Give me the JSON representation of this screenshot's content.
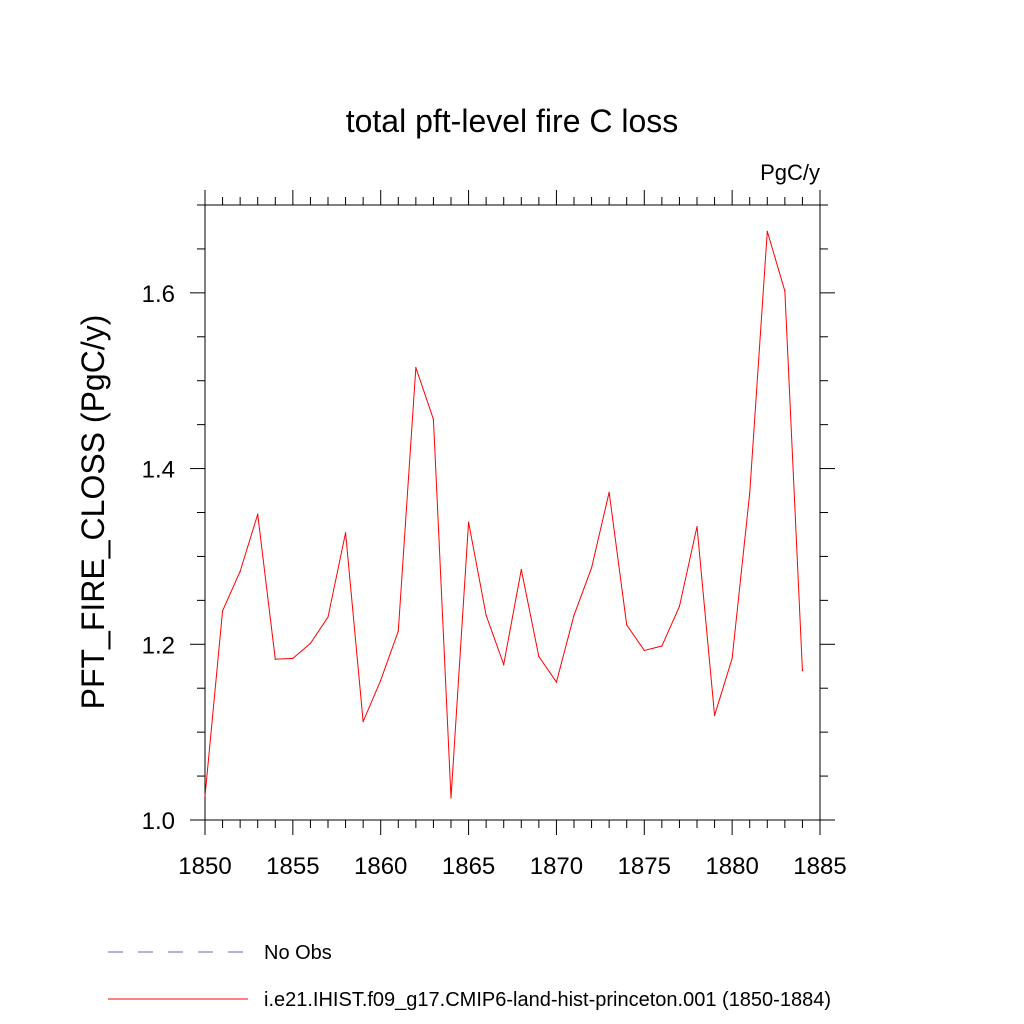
{
  "chart_data": {
    "type": "line",
    "title": "total pft-level fire C loss",
    "units": "PgC/y",
    "xlabel": "",
    "ylabel": "PFT_FIRE_CLOSS  (PgC/y)",
    "xlim": [
      1850,
      1885
    ],
    "ylim": [
      1.0,
      1.7
    ],
    "grid": false,
    "x_ticks": [
      1850,
      1855,
      1860,
      1865,
      1870,
      1875,
      1880,
      1885
    ],
    "x_tick_labels": [
      "1850",
      "1855",
      "1860",
      "1865",
      "1870",
      "1875",
      "1880",
      "1885"
    ],
    "y_ticks": [
      1.0,
      1.2,
      1.4,
      1.6
    ],
    "y_tick_labels": [
      "1.0",
      "1.2",
      "1.4",
      "1.6"
    ],
    "x_minor_step": 1,
    "y_minor_step": 0.05,
    "x": [
      1850,
      1851,
      1852,
      1853,
      1854,
      1855,
      1856,
      1857,
      1858,
      1859,
      1860,
      1861,
      1862,
      1863,
      1864,
      1865,
      1866,
      1867,
      1868,
      1869,
      1870,
      1871,
      1872,
      1873,
      1874,
      1875,
      1876,
      1877,
      1878,
      1879,
      1880,
      1881,
      1882,
      1883,
      1884
    ],
    "series": [
      {
        "name": "i.e21.IHIST.f09_g17.CMIP6-land-hist-princeton.001 (1850-1884)",
        "color": "#ff0000",
        "style": "solid",
        "values": [
          1.027,
          1.238,
          1.283,
          1.348,
          1.183,
          1.184,
          1.201,
          1.231,
          1.327,
          1.112,
          1.159,
          1.215,
          1.515,
          1.456,
          1.025,
          1.339,
          1.233,
          1.177,
          1.285,
          1.186,
          1.157,
          1.233,
          1.287,
          1.373,
          1.222,
          1.193,
          1.198,
          1.243,
          1.334,
          1.119,
          1.184,
          1.372,
          1.67,
          1.602,
          1.17
        ]
      }
    ],
    "legend": {
      "placement": "bottom-left",
      "entries": [
        {
          "label": "No Obs",
          "color": "#6e63b5",
          "style": "dashed"
        },
        {
          "label": "i.e21.IHIST.f09_g17.CMIP6-land-hist-princeton.001 (1850-1884)",
          "color": "#ff0000",
          "style": "solid"
        }
      ]
    }
  }
}
